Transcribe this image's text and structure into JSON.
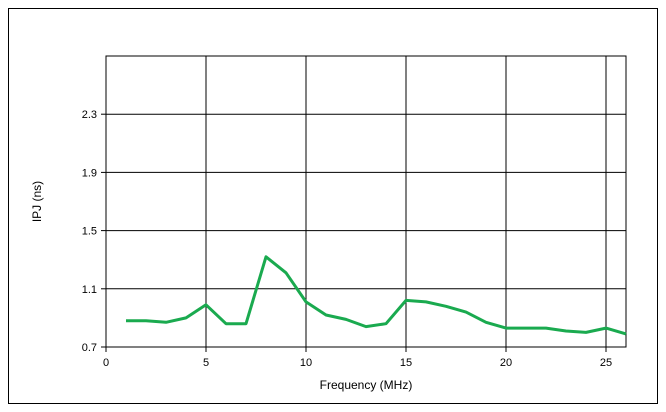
{
  "chart_data": {
    "type": "line",
    "title": "",
    "xlabel": "Frequency (MHz)",
    "ylabel": "IPJ (ns)",
    "xlim": [
      0,
      26
    ],
    "ylim": [
      0.7,
      2.7
    ],
    "x_ticks": [
      0,
      5,
      10,
      15,
      20,
      25
    ],
    "y_ticks": [
      0.7,
      1.1,
      1.5,
      1.9,
      2.3
    ],
    "x_tick_labels": [
      "0",
      "5",
      "10",
      "15",
      "20",
      "25"
    ],
    "y_tick_labels": [
      "0.7",
      "1.1",
      "1.5",
      "1.9",
      "2.3"
    ],
    "grid": true,
    "series": [
      {
        "color": "#1aaa4f",
        "x": [
          1,
          2,
          3,
          4,
          5,
          6,
          7,
          8,
          9,
          10,
          11,
          12,
          13,
          14,
          15,
          16,
          17,
          18,
          19,
          20,
          21,
          22,
          23,
          24,
          25,
          26
        ],
        "values": [
          0.88,
          0.88,
          0.87,
          0.9,
          0.99,
          0.86,
          0.86,
          1.32,
          1.21,
          1.01,
          0.92,
          0.89,
          0.84,
          0.86,
          1.02,
          1.01,
          0.98,
          0.94,
          0.87,
          0.83,
          0.83,
          0.83,
          0.81,
          0.8,
          0.83,
          0.79
        ]
      }
    ]
  }
}
